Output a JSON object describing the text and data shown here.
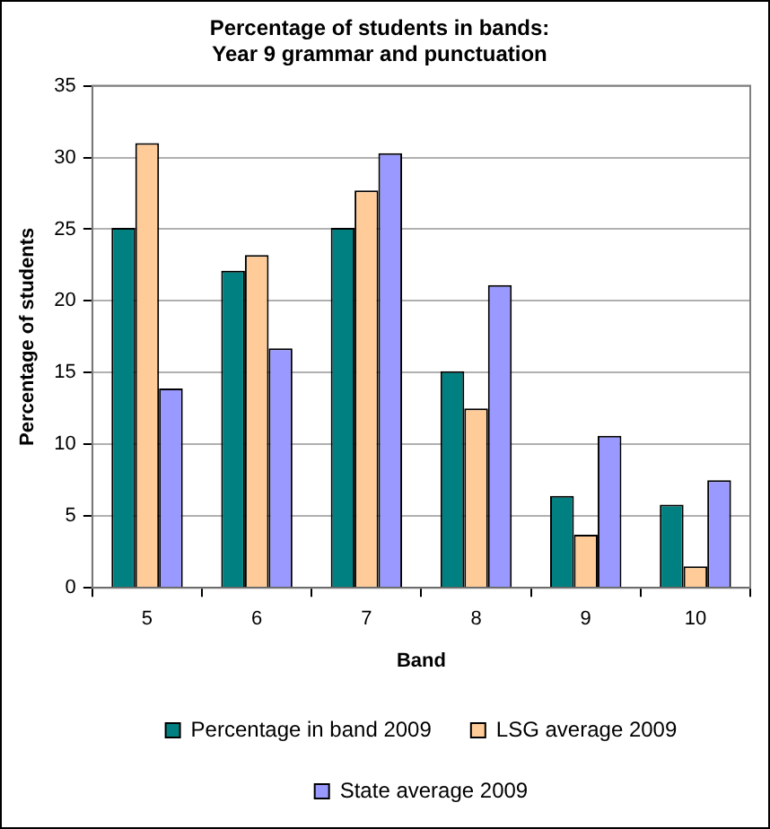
{
  "chart_data": {
    "type": "bar",
    "title": "Percentage of students in bands:\nYear 9 grammar and punctuation",
    "xlabel": "Band",
    "ylabel": "Percentage of students",
    "categories": [
      "5",
      "6",
      "7",
      "8",
      "9",
      "10"
    ],
    "series": [
      {
        "name": "Percentage in band 2009",
        "color": "#008080",
        "values": [
          25.1,
          22.1,
          25.1,
          15.1,
          6.4,
          5.8
        ]
      },
      {
        "name": "LSG average 2009",
        "color": "#ffcc99",
        "values": [
          31,
          23.2,
          27.7,
          12.5,
          3.7,
          1.5
        ]
      },
      {
        "name": "State average 2009",
        "color": "#9999ff",
        "values": [
          13.9,
          16.7,
          30.3,
          21.1,
          10.6,
          7.5
        ]
      }
    ],
    "ylim": [
      0,
      35
    ],
    "yticks": [
      0,
      5,
      10,
      15,
      20,
      25,
      30,
      35
    ],
    "grid": "y",
    "legend": "bottom"
  }
}
